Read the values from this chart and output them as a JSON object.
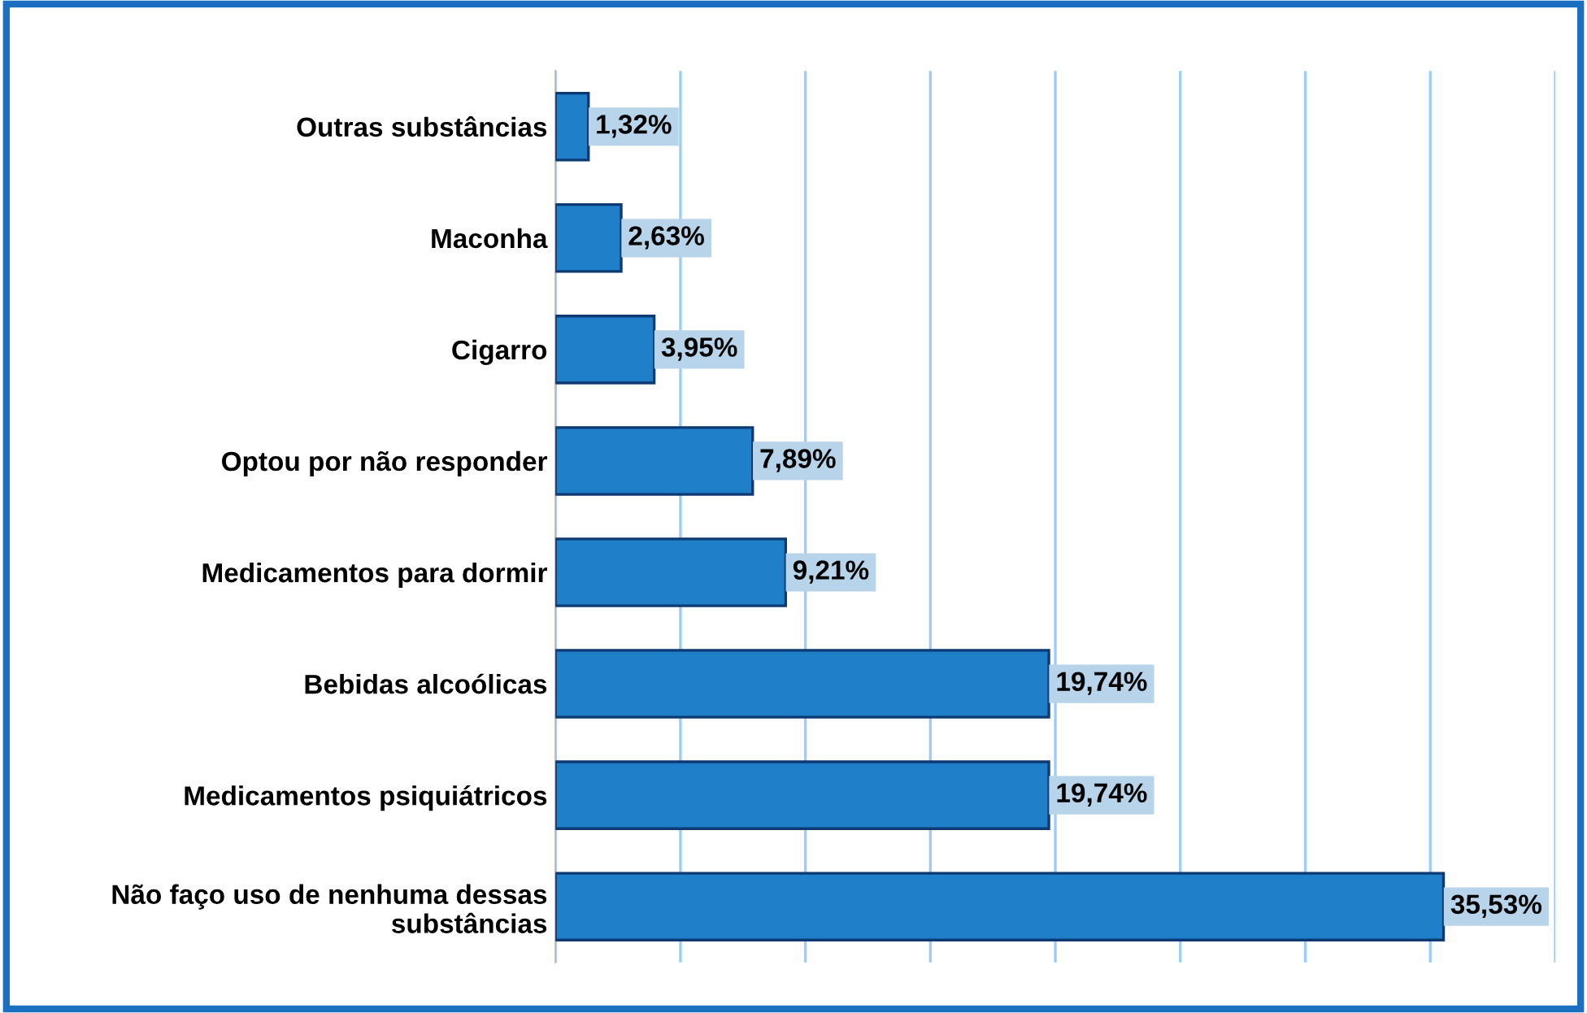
{
  "chart_data": {
    "type": "bar",
    "orientation": "horizontal",
    "categories": [
      "Outras substâncias",
      "Maconha",
      "Cigarro",
      "Optou por não responder",
      "Medicamentos para dormir",
      "Bebidas alcoólicas",
      "Medicamentos psiquiátricos",
      "Não faço uso de nenhuma dessas\nsubstâncias"
    ],
    "values": [
      1.32,
      2.63,
      3.95,
      7.89,
      9.21,
      19.74,
      19.74,
      35.53
    ],
    "value_labels": [
      "1,32%",
      "2,63%",
      "3,95%",
      "7,89%",
      "9,21%",
      "19,74%",
      "19,74%",
      "35,53%"
    ],
    "color": "#1f7fc8",
    "xlim": [
      0,
      40
    ],
    "xticks": [
      {
        "value": 0,
        "label": null
      },
      {
        "value": 5,
        "label": null
      },
      {
        "value": 10,
        "label": null
      },
      {
        "value": 15,
        "label": null
      },
      {
        "value": 20,
        "label": null
      },
      {
        "value": 25,
        "label": null
      },
      {
        "value": 30,
        "label": null
      },
      {
        "value": 35,
        "label": null
      },
      {
        "value": 40,
        "label": null
      }
    ],
    "grid": "x",
    "legend": false
  }
}
